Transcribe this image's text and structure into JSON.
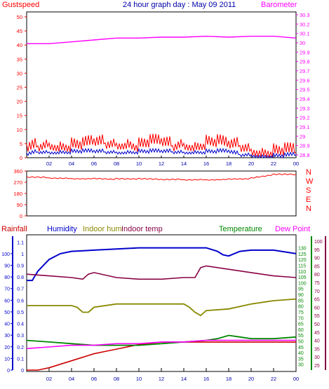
{
  "chart_data": [
    {
      "type": "line",
      "title": "24 hour graph day : May 09 2011",
      "left_axis_label": "Gustspeed",
      "right_axis_label": "Barometer",
      "x_ticks": [
        "02",
        "04",
        "06",
        "08",
        "10",
        "12",
        "14",
        "16",
        "18",
        "20",
        "22",
        "00"
      ],
      "y_left_ticks": [
        0,
        5,
        10,
        15,
        20,
        25,
        30,
        35,
        40,
        45,
        50
      ],
      "y_left_range": [
        0,
        50
      ],
      "y_right_ticks": [
        28.8,
        28.9,
        29.0,
        29.1,
        29.2,
        29.3,
        29.4,
        29.5,
        29.6,
        29.7,
        29.8,
        29.9,
        30.0,
        30.1,
        30.2,
        30.3
      ],
      "y_right_tick_labels": [
        "28.8",
        "28.9",
        "29",
        "29.1",
        "29.2",
        "29.3",
        "29.4",
        "29.5",
        "29.6",
        "29.7",
        "29.8",
        "29.9",
        "30",
        "30.1",
        "30.2",
        "30.3"
      ],
      "y_right_range": [
        28.8,
        30.3
      ],
      "colors": {
        "gust": "#ff0000",
        "wind": "#0000cc",
        "barometer": "#ff00ff",
        "title": "#0000aa"
      },
      "series": [
        {
          "name": "Barometer",
          "axis": "right",
          "x": [
            0,
            2,
            4,
            6,
            8,
            10,
            12,
            14,
            16,
            18,
            20,
            22,
            24
          ],
          "values": [
            29.99,
            29.99,
            30.01,
            30.03,
            30.05,
            30.05,
            30.06,
            30.06,
            30.07,
            30.06,
            30.07,
            30.07,
            30.05
          ]
        },
        {
          "name": "Gustspeed",
          "axis": "left",
          "x": [
            0,
            1,
            2,
            3,
            4,
            5,
            6,
            7,
            8,
            9,
            10,
            11,
            12,
            13,
            14,
            15,
            16,
            17,
            18,
            19,
            20,
            21,
            22,
            23,
            24
          ],
          "values": [
            3,
            4,
            5,
            4,
            4,
            4,
            5,
            5,
            5,
            5,
            4,
            5,
            5,
            4,
            5,
            4,
            5,
            5,
            4,
            4,
            3,
            2,
            2,
            2,
            2
          ]
        },
        {
          "axis": "left",
          "x": [
            0,
            1,
            2,
            3,
            4,
            5,
            6,
            7,
            8,
            9,
            10,
            11,
            12,
            13,
            14,
            15,
            16,
            17,
            18,
            19,
            20,
            21,
            22,
            23,
            24
          ],
          "values": [
            1,
            2,
            2,
            2,
            2,
            2,
            2,
            2,
            2,
            2,
            2,
            2,
            2,
            2,
            2,
            2,
            2,
            2,
            2,
            1,
            1,
            0.5,
            0.5,
            0.5,
            1
          ]
        }
      ]
    },
    {
      "type": "line",
      "right_labels": [
        "N",
        "W",
        "S",
        "E",
        "N"
      ],
      "y_ticks": [
        0,
        90,
        180,
        270,
        360
      ],
      "y_range": [
        0,
        360
      ],
      "colors": {
        "direction": "#ff0000",
        "letters": "#ff0000"
      },
      "series": [
        {
          "axis": "left",
          "x": [
            0,
            2,
            4,
            6,
            8,
            10,
            12,
            14,
            16,
            18,
            20,
            22,
            24
          ],
          "values": [
            310,
            305,
            300,
            300,
            295,
            295,
            290,
            290,
            290,
            295,
            300,
            330,
            330
          ]
        }
      ]
    },
    {
      "type": "line",
      "legend": [
        {
          "name": "Rainfall",
          "color": "#cc0000"
        },
        {
          "name": "Humidity",
          "color": "#0000cc"
        },
        {
          "name": "Indoor hum",
          "color": "#888800"
        },
        {
          "name": "Indoor temp",
          "color": "#880044"
        },
        {
          "name": "Temperature",
          "color": "#008800"
        },
        {
          "name": "Dew Point",
          "color": "#ff00ff"
        }
      ],
      "rain_ticks": [
        "0",
        "0.1",
        "0.2",
        "0.3",
        "0.4",
        "0.5",
        "0.6",
        "0.7",
        "0.8",
        "0.9",
        "1",
        "1.1"
      ],
      "rain_range": [
        0,
        1.15
      ],
      "hum_ticks": [
        0,
        10,
        20,
        30,
        40,
        50,
        60,
        70,
        80,
        90,
        100
      ],
      "hum_range": [
        0,
        115
      ],
      "temp_ticks": [
        30,
        35,
        40,
        45,
        50,
        55,
        60,
        65,
        70,
        75,
        80,
        85,
        90,
        95,
        100,
        105,
        110,
        115,
        120,
        125,
        130
      ],
      "temp_range": [
        25,
        140
      ],
      "right_ticks": [
        25,
        30,
        35,
        40,
        45,
        50,
        55,
        60,
        65,
        70,
        75,
        80,
        85,
        90,
        95,
        100
      ],
      "right_range": [
        22,
        103
      ],
      "x_ticks": [
        "02",
        "04",
        "06",
        "08",
        "10",
        "12",
        "14",
        "16",
        "18",
        "20",
        "22",
        "00"
      ],
      "series": [
        {
          "name": "Rainfall",
          "axis": "rain",
          "x": [
            0,
            1,
            2,
            3,
            4,
            5,
            6,
            7,
            8,
            9,
            10,
            11,
            12,
            13,
            14,
            15,
            16,
            17,
            18,
            19,
            20,
            21,
            22,
            23,
            24
          ],
          "values": [
            0,
            0,
            0.02,
            0.05,
            0.08,
            0.11,
            0.14,
            0.16,
            0.18,
            0.2,
            0.22,
            0.23,
            0.24,
            0.24,
            0.24,
            0.24,
            0.24,
            0.24,
            0.24,
            0.24,
            0.24,
            0.24,
            0.24,
            0.24,
            0.24
          ]
        },
        {
          "name": "Humidity",
          "axis": "hum",
          "x": [
            0,
            0.5,
            1,
            2,
            3,
            4,
            6,
            8,
            10,
            12,
            14,
            15,
            16,
            17,
            17.5,
            18,
            19,
            20,
            22,
            24
          ],
          "values": [
            77,
            77,
            85,
            95,
            100,
            102,
            103,
            104,
            105,
            105,
            105,
            105,
            105,
            102,
            99,
            98,
            102,
            103,
            103,
            100
          ]
        },
        {
          "name": "Indoor hum",
          "axis": "right",
          "x": [
            0,
            2,
            4,
            4.5,
            5,
            5.5,
            6,
            8,
            10,
            12,
            14,
            14.5,
            15,
            15.5,
            16,
            18,
            20,
            22,
            24
          ],
          "values": [
            61,
            61,
            61,
            60,
            57,
            57,
            60,
            62,
            62,
            62,
            62,
            60,
            57,
            55,
            58,
            59,
            62,
            64,
            65
          ]
        },
        {
          "name": "Indoor temp",
          "axis": "right",
          "x": [
            0,
            2,
            4,
            5,
            5.5,
            6,
            8,
            10,
            12,
            14,
            15,
            15.5,
            16,
            18,
            20,
            22,
            24
          ],
          "values": [
            80,
            79,
            78,
            77,
            80,
            81,
            78,
            77,
            77,
            78,
            78,
            84,
            85,
            83,
            81,
            79,
            78
          ]
        },
        {
          "name": "Temperature",
          "axis": "right",
          "x": [
            0,
            2,
            4,
            6,
            8,
            10,
            12,
            14,
            16,
            17,
            18,
            19,
            20,
            22,
            24
          ],
          "values": [
            40,
            39,
            38,
            37,
            37,
            37,
            38,
            39,
            40,
            41,
            43,
            42,
            41,
            41,
            42
          ]
        },
        {
          "name": "Dew Point",
          "axis": "right",
          "x": [
            0,
            2,
            4,
            6,
            8,
            10,
            12,
            14,
            16,
            18,
            20,
            22,
            24
          ],
          "values": [
            35,
            36,
            37,
            37,
            38,
            38,
            39,
            39,
            40,
            40,
            40,
            40,
            40
          ]
        }
      ]
    }
  ]
}
